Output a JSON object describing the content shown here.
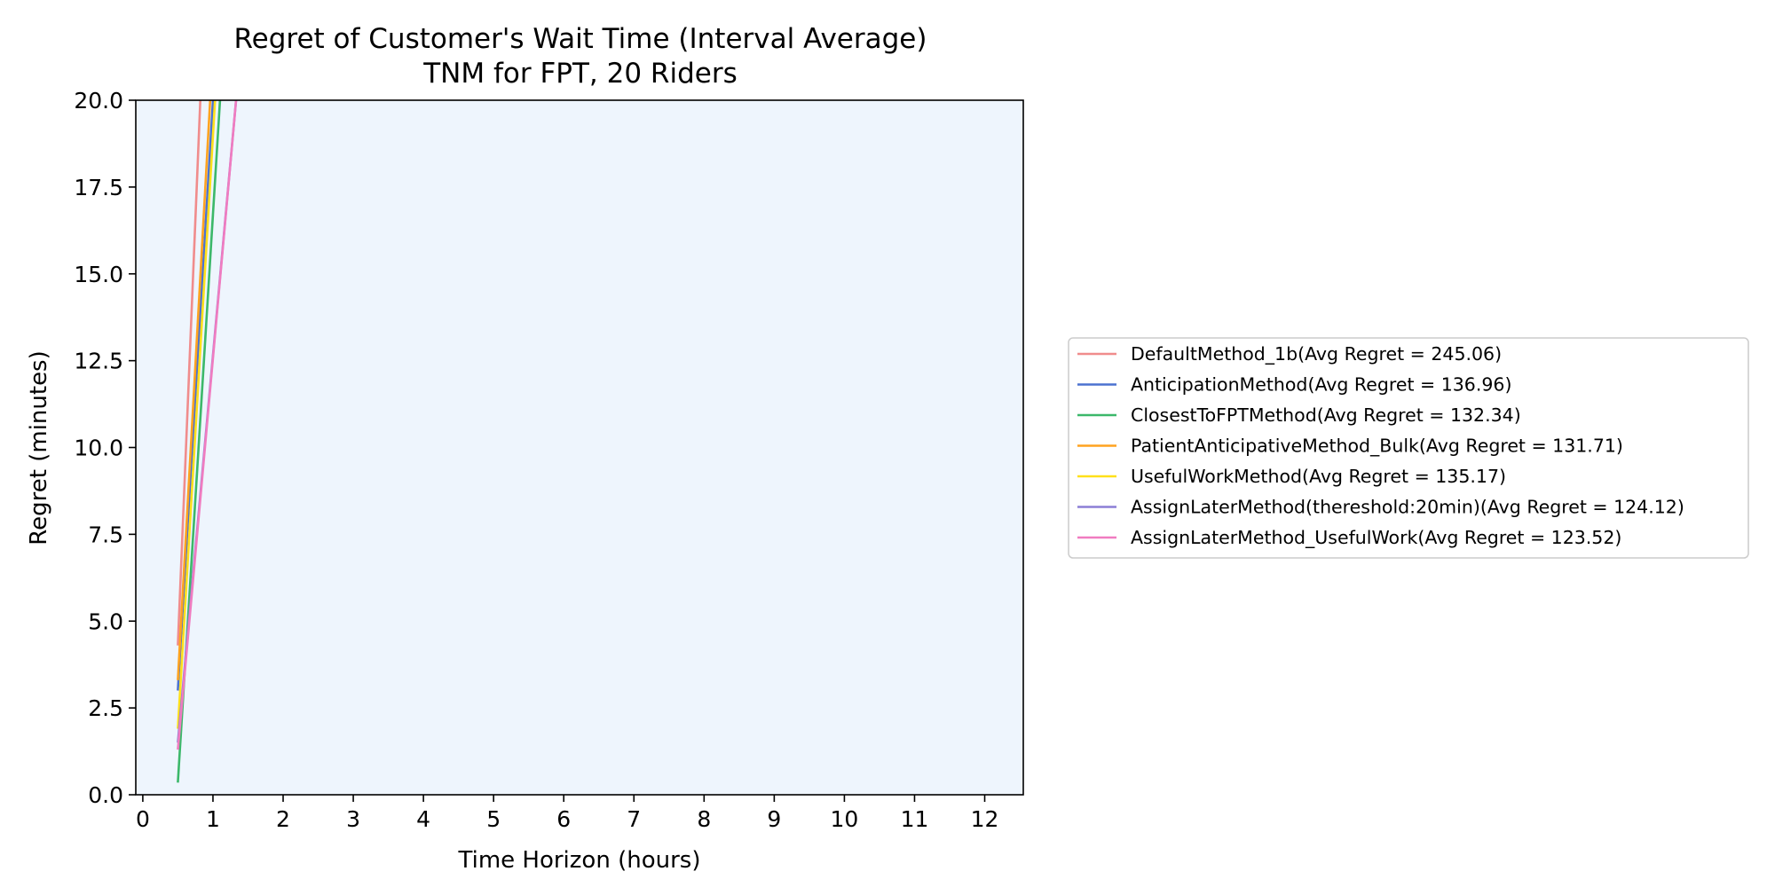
{
  "chart_data": {
    "type": "line",
    "title": "Regret of Customer's Wait Time (Interval Average)",
    "subtitle": "TNM for FPT, 20 Riders",
    "xlabel": "Time Horizon (hours)",
    "ylabel": "Regret (minutes)",
    "xlim": [
      -0.1,
      12.55
    ],
    "ylim": [
      0,
      20
    ],
    "x_ticks": [
      "0",
      "1",
      "2",
      "3",
      "4",
      "5",
      "6",
      "7",
      "8",
      "9",
      "10",
      "11",
      "12"
    ],
    "y_ticks": [
      "0.0",
      "2.5",
      "5.0",
      "7.5",
      "10.0",
      "12.5",
      "15.0",
      "17.5",
      "20.0"
    ],
    "plot_background": "#eef5fd",
    "grid": false,
    "legend_position": "outside-right",
    "series": [
      {
        "name": "DefaultMethod_1b(Avg Regret = 245.06)",
        "color": "#f08c8c",
        "x": [
          0.5,
          0.82
        ],
        "y": [
          4.3,
          20.0
        ]
      },
      {
        "name": "AnticipationMethod(Avg Regret = 136.96)",
        "color": "#4c72d0",
        "x": [
          0.5,
          1.0
        ],
        "y": [
          3.0,
          20.0
        ]
      },
      {
        "name": "ClosestToFPTMethod(Avg Regret = 132.34)",
        "color": "#3cb86a",
        "x": [
          0.5,
          1.1
        ],
        "y": [
          0.35,
          20.0
        ]
      },
      {
        "name": "PatientAnticipativeMethod_Bulk(Avg Regret = 131.71)",
        "color": "#ffa320",
        "x": [
          0.5,
          0.96
        ],
        "y": [
          3.3,
          20.0
        ]
      },
      {
        "name": "UsefulWorkMethod(Avg Regret = 135.17)",
        "color": "#ffe01a",
        "x": [
          0.5,
          1.03
        ],
        "y": [
          1.9,
          20.0
        ]
      },
      {
        "name": "AssignLaterMethod(thereshold:20min)(Avg Regret = 124.12)",
        "color": "#8c7fd6",
        "x": [
          0.5,
          1.33
        ],
        "y": [
          1.5,
          20.0
        ]
      },
      {
        "name": "AssignLaterMethod_UsefulWork(Avg Regret = 123.52)",
        "color": "#f07cc0",
        "x": [
          0.5,
          1.33
        ],
        "y": [
          1.3,
          20.0
        ]
      }
    ]
  }
}
